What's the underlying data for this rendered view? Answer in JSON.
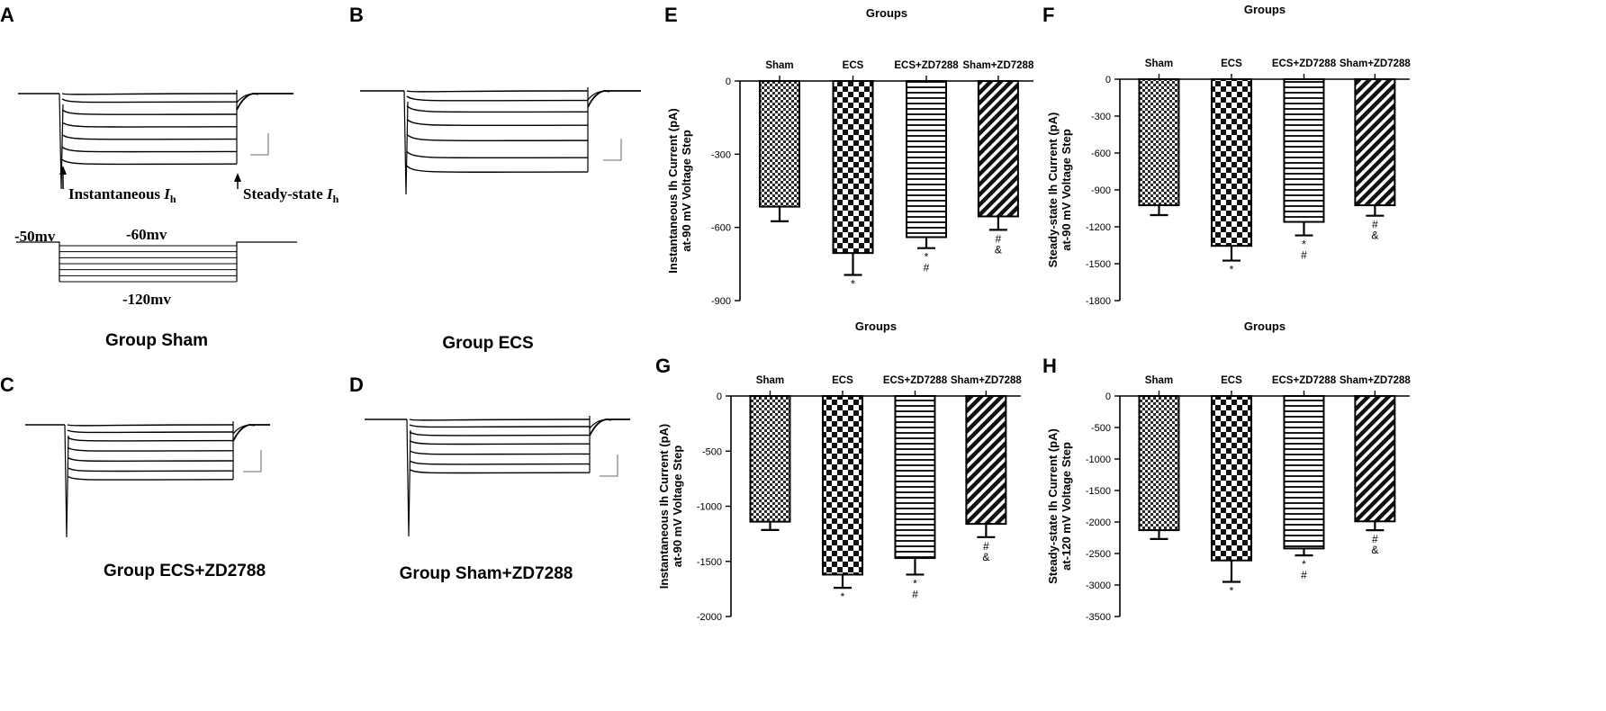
{
  "figure": {
    "panel_letters": [
      "A",
      "B",
      "C",
      "D",
      "E",
      "F",
      "G",
      "H"
    ],
    "trace_captions": {
      "A": "Group Sham",
      "B": "Group ECS",
      "C": "Group ECS+ZD2788",
      "D": "Group Sham+ZD7288"
    },
    "annotations": {
      "instantaneous_label": "Instantaneous ",
      "steady_label": "Steady-state ",
      "current_symbol": "I",
      "current_subscript": "h",
      "holding_potential": "-50mv",
      "first_step": "-60mv",
      "last_step": "-120mv"
    },
    "trace_data": {
      "A": [
        0,
        0.1,
        0.25,
        0.4,
        0.55,
        0.7,
        0.85
      ],
      "B": [
        0,
        0.1,
        0.22,
        0.36,
        0.52,
        0.7,
        0.85
      ],
      "C": [
        0,
        0.1,
        0.22,
        0.36,
        0.5,
        0.64,
        0.76
      ],
      "D": [
        0,
        0.1,
        0.22,
        0.34,
        0.48,
        0.62,
        0.74
      ]
    }
  },
  "chart_data": [
    {
      "panel": "E",
      "type": "bar",
      "title": "Groups",
      "categories": [
        "Sham",
        "ECS",
        "ECS+ZD7288",
        "Sham+ZD7288"
      ],
      "values": [
        -515,
        -705,
        -640,
        -555
      ],
      "errors": [
        60,
        90,
        45,
        55
      ],
      "significance": [
        "",
        "*",
        "*\n#",
        "#\n&"
      ],
      "patterns": [
        "check-small",
        "check-large",
        "hstripes",
        "diag"
      ],
      "ylabel": "Instantaneous Ih Current (pA)\nat-90 mV Voltage Step",
      "ylim": [
        -900,
        0
      ],
      "yticks": [
        0,
        -300,
        -600,
        -900
      ]
    },
    {
      "panel": "F",
      "type": "bar",
      "title": "Groups",
      "categories": [
        "Sham",
        "ECS",
        "ECS+ZD7288",
        "Sham+ZD7288"
      ],
      "values": [
        -1025,
        -1355,
        -1160,
        -1025
      ],
      "errors": [
        80,
        120,
        110,
        85
      ],
      "significance": [
        "",
        "*",
        "*\n#",
        "#\n&"
      ],
      "patterns": [
        "check-small",
        "check-large",
        "hstripes",
        "diag"
      ],
      "ylabel": "Steady-state Ih Current (pA)\nat-90 mV Voltage Step",
      "ylim": [
        -1800,
        0
      ],
      "yticks": [
        0,
        -300,
        -600,
        -900,
        -1200,
        -1500,
        -1800
      ]
    },
    {
      "panel": "G",
      "type": "bar",
      "title": "Groups",
      "categories": [
        "Sham",
        "ECS",
        "ECS+ZD7288",
        "Sham+ZD7288"
      ],
      "values": [
        -1140,
        -1620,
        -1470,
        -1160
      ],
      "errors": [
        75,
        120,
        150,
        120
      ],
      "significance": [
        "",
        "*",
        "*\n#",
        "#\n&"
      ],
      "patterns": [
        "check-small",
        "check-large",
        "hstripes",
        "diag"
      ],
      "ylabel": "Instantaneous Ih Current (pA)\nat-90 mV Voltage Step",
      "ylim": [
        -2000,
        0
      ],
      "yticks": [
        0,
        -500,
        -1000,
        -1500,
        -2000
      ]
    },
    {
      "panel": "H",
      "type": "bar",
      "title": "Groups",
      "categories": [
        "Sham",
        "ECS",
        "ECS+ZD7288",
        "Sham+ZD7288"
      ],
      "values": [
        -2130,
        -2610,
        -2420,
        -1990
      ],
      "errors": [
        140,
        340,
        110,
        140
      ],
      "significance": [
        "",
        "*",
        "*\n#",
        "#\n&"
      ],
      "patterns": [
        "check-small",
        "check-large",
        "hstripes",
        "diag"
      ],
      "ylabel": "Steady-state Ih Current (pA)\nat-120 mV Voltage Step",
      "ylim": [
        -3500,
        0
      ],
      "yticks": [
        0,
        -500,
        -1000,
        -1500,
        -2000,
        -2500,
        -3000,
        -3500
      ]
    }
  ]
}
